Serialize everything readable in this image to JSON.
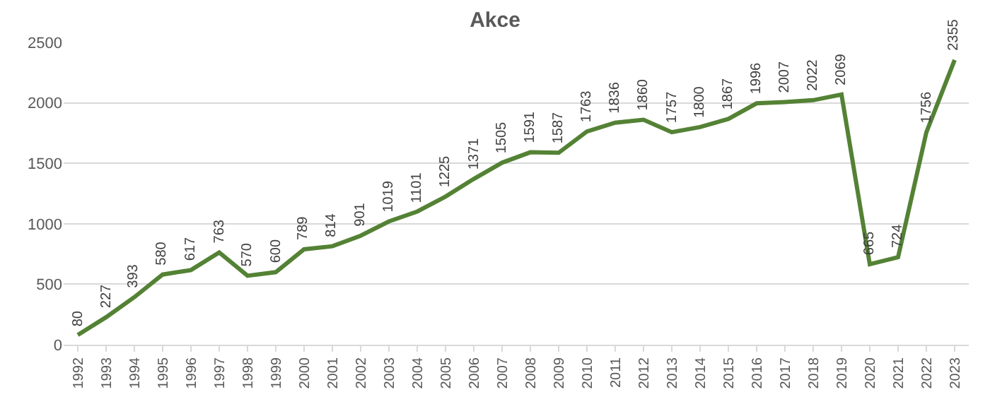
{
  "chart_data": {
    "type": "line",
    "title": "Akce",
    "categories": [
      "1992",
      "1993",
      "1994",
      "1995",
      "1996",
      "1997",
      "1998",
      "1999",
      "2000",
      "2001",
      "2002",
      "2003",
      "2004",
      "2005",
      "2006",
      "2007",
      "2008",
      "2009",
      "2010",
      "2011",
      "2012",
      "2013",
      "2014",
      "2015",
      "2016",
      "2017",
      "2018",
      "2019",
      "2020",
      "2021",
      "2022",
      "2023"
    ],
    "series": [
      {
        "color": "#548235",
        "values": [
          80,
          227,
          393,
          580,
          617,
          763,
          570,
          600,
          789,
          814,
          901,
          1019,
          1101,
          1225,
          1371,
          1505,
          1591,
          1587,
          1763,
          1836,
          1860,
          1757,
          1800,
          1867,
          1996,
          2007,
          2022,
          2069,
          665,
          724,
          1756,
          2355
        ]
      }
    ],
    "ylim": [
      0,
      2500
    ],
    "yticks": [
      0,
      500,
      1000,
      1500,
      2000,
      2500
    ],
    "grid": "y",
    "data_labels": true,
    "marker": "none",
    "line_style": "solid"
  }
}
